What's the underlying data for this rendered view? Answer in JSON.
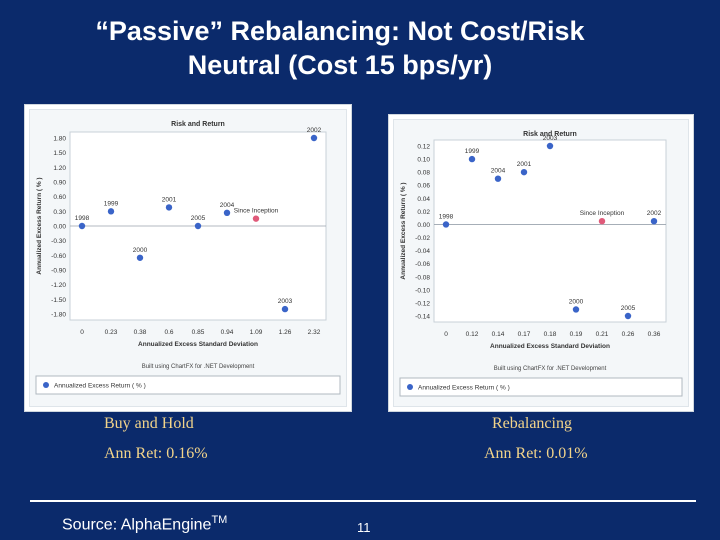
{
  "slide": {
    "title_line1": "“Passive” Rebalancing: Not Cost/Risk",
    "title_line2": "Neutral (Cost 15 bps/yr)",
    "caption_left_label": "Buy and Hold",
    "caption_left_value": "Ann Ret: 0.16%",
    "caption_right_label": "Rebalancing",
    "caption_right_value": "Ann Ret: 0.01%",
    "source_text": "Source: AlphaEngine",
    "source_tm": "TM",
    "page_number": "11"
  },
  "colors": {
    "background": "#0b2a6b",
    "point": "#3a64c8",
    "inception": "#e05a7a",
    "caption": "#f2d48a"
  },
  "chart_data": [
    {
      "type": "scatter",
      "title": "Risk and Return",
      "xlabel": "Annualized Excess Standard Deviation",
      "ylabel": "Annualized Excess Return ( % )",
      "x_ticks": [
        "0",
        "0.23",
        "0.38",
        "0.6",
        "0.85",
        "0.94",
        "1.09",
        "1.26",
        "2.32"
      ],
      "y_ticks": [
        1.8,
        1.5,
        1.2,
        0.9,
        0.6,
        0.3,
        0.0,
        -0.3,
        -0.6,
        -0.9,
        -1.2,
        -1.5,
        -1.8
      ],
      "y_tick_labels": [
        "1.80",
        "1.50",
        "1.20",
        "0.90",
        "0.60",
        "0.30",
        "0.00",
        "-0.30",
        "-0.60",
        "-0.90",
        "-1.20",
        "-1.50",
        "-1.80"
      ],
      "ylim": [
        -1.8,
        1.8
      ],
      "series": [
        {
          "name": "Annualized Excess Return ( % )",
          "points": [
            {
              "label": "1998",
              "x": "0",
              "y": 0.0
            },
            {
              "label": "1999",
              "x": "0.23",
              "y": 0.3
            },
            {
              "label": "2000",
              "x": "0.38",
              "y": -0.65
            },
            {
              "label": "2001",
              "x": "0.6",
              "y": 0.38
            },
            {
              "label": "2005",
              "x": "0.85",
              "y": 0.0
            },
            {
              "label": "2004",
              "x": "0.94",
              "y": 0.27
            },
            {
              "label": "Since Inception",
              "x": "1.09",
              "y": 0.15,
              "highlight": true
            },
            {
              "label": "2003",
              "x": "1.26",
              "y": -1.7
            },
            {
              "label": "2002",
              "x": "2.32",
              "y": 1.8
            }
          ]
        }
      ],
      "footer": "Built using ChartFX for .NET Development",
      "legend": "Annualized Excess Return ( % )"
    },
    {
      "type": "scatter",
      "title": "Risk and Return",
      "xlabel": "Annualized Excess Standard Deviation",
      "ylabel": "Annualized Excess Return ( % )",
      "x_ticks": [
        "0",
        "0.12",
        "0.14",
        "0.17",
        "0.18",
        "0.19",
        "0.21",
        "0.26",
        "0.36"
      ],
      "y_ticks": [
        0.12,
        0.1,
        0.08,
        0.06,
        0.04,
        0.02,
        0.0,
        -0.02,
        -0.04,
        -0.06,
        -0.08,
        -0.1,
        -0.12,
        -0.14
      ],
      "y_tick_labels": [
        "0.12",
        "0.10",
        "0.08",
        "0.06",
        "0.04",
        "0.02",
        "0.00",
        "-0.02",
        "-0.04",
        "-0.06",
        "-0.08",
        "-0.10",
        "-0.12",
        "-0.14"
      ],
      "ylim": [
        -0.14,
        0.12
      ],
      "series": [
        {
          "name": "Annualized Excess Return ( % )",
          "points": [
            {
              "label": "1998",
              "x": "0",
              "y": 0.0
            },
            {
              "label": "1999",
              "x": "0.12",
              "y": 0.1
            },
            {
              "label": "2004",
              "x": "0.14",
              "y": 0.07
            },
            {
              "label": "2001",
              "x": "0.17",
              "y": 0.08
            },
            {
              "label": "2003",
              "x": "0.18",
              "y": 0.12
            },
            {
              "label": "2000",
              "x": "0.19",
              "y": -0.13
            },
            {
              "label": "Since Inception",
              "x": "0.21",
              "y": 0.005,
              "highlight": true
            },
            {
              "label": "2005",
              "x": "0.26",
              "y": -0.14
            },
            {
              "label": "2002",
              "x": "0.36",
              "y": 0.005
            }
          ]
        }
      ],
      "footer": "Built using ChartFX for .NET Development",
      "legend": "Annualized Excess Return ( % )"
    }
  ]
}
